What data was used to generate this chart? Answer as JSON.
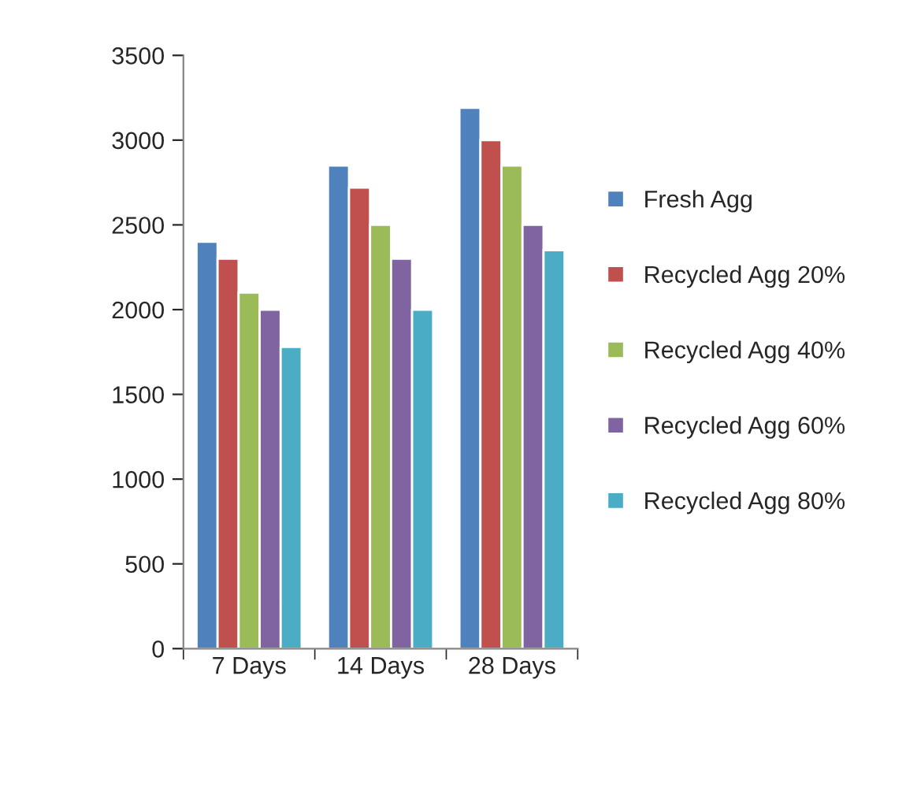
{
  "chart_data": {
    "type": "bar",
    "categories": [
      "7 Days",
      "14 Days",
      "28 Days"
    ],
    "series": [
      {
        "name": "Fresh Agg",
        "color": "#4f81bd",
        "values": [
          2400,
          2850,
          3190
        ]
      },
      {
        "name": "Recycled Agg 20%",
        "color": "#c0504d",
        "values": [
          2300,
          2720,
          3000
        ]
      },
      {
        "name": "Recycled Agg 40%",
        "color": "#9bbb59",
        "values": [
          2100,
          2500,
          2850
        ]
      },
      {
        "name": "Recycled Agg 60%",
        "color": "#8064a2",
        "values": [
          2000,
          2300,
          2500
        ]
      },
      {
        "name": "Recycled Agg 80%",
        "color": "#4bacc6",
        "values": [
          1780,
          2000,
          2350
        ]
      }
    ],
    "ylim": [
      0,
      3500
    ],
    "yticks": [
      0,
      500,
      1000,
      1500,
      2000,
      2500,
      3000,
      3500
    ],
    "grid": false,
    "legend": "right"
  }
}
